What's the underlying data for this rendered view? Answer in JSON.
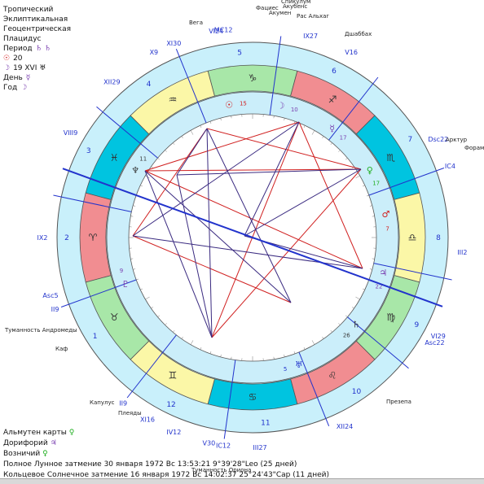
{
  "header": {
    "line1": "Тропический",
    "line2": "Эклиптикальная",
    "line3": "Геоцентрическая",
    "line4": "Плацидус",
    "period_label": "Период",
    "period_glyphs": "♄ ♄",
    "sun_value": "20",
    "moon_value": "19 XVI ♅",
    "day_label": "День",
    "day_glyph": "☿",
    "year_label": "Год",
    "year_glyph": "☽"
  },
  "footer": {
    "almuten_label": "Альмутен карты",
    "almuten_glyph": "♀",
    "doriphory_label": "Дорифорий",
    "doriphory_glyph": "♃",
    "vozn_label": "Возничий",
    "vozn_glyph": "♀",
    "eclipse_lunar": "Полное Лунное затмение 30 января 1972 Вс 13:53:21  9°39'28\"Leo (25 дней)",
    "eclipse_solar": "Кольцевое Солнечное затмение 16 января 1972 Вс 14:02:37 25°24'43\"Cap (11 дней)"
  },
  "zodiac": [
    {
      "glyph": "♑",
      "color": "#a8e7a8",
      "text_color": "#333"
    },
    {
      "glyph": "♐",
      "color": "#f18d91",
      "text_color": "#333"
    },
    {
      "glyph": "♏",
      "color": "#00c4e0",
      "text_color": "#333"
    },
    {
      "glyph": "♎",
      "color": "#fbf7a7",
      "text_color": "#333"
    },
    {
      "glyph": "♍",
      "color": "#a8e7a8",
      "text_color": "#333"
    },
    {
      "glyph": "♌",
      "color": "#f18d91",
      "text_color": "#333"
    },
    {
      "glyph": "♋",
      "color": "#00c4e0",
      "text_color": "#333"
    },
    {
      "glyph": "♊",
      "color": "#fbf7a7",
      "text_color": "#333"
    },
    {
      "glyph": "♉",
      "color": "#a8e7a8",
      "text_color": "#333"
    },
    {
      "glyph": "♈",
      "color": "#f18d91",
      "text_color": "#333"
    },
    {
      "glyph": "♓",
      "color": "#00c4e0",
      "text_color": "#333"
    },
    {
      "glyph": "♒",
      "color": "#fbf7a7",
      "text_color": "#333"
    }
  ],
  "outer_house_numbers": [
    "1",
    "2",
    "3",
    "4",
    "5",
    "6",
    "7",
    "8",
    "9",
    "10",
    "11",
    "12"
  ],
  "cusp_labels": [
    {
      "text": "MC12"
    },
    {
      "text": "IX27"
    },
    {
      "text": "XI30"
    },
    {
      "text": "XII29"
    },
    {
      "text": "Dsc22"
    },
    {
      "text": "VIII9"
    },
    {
      "text": "IX2"
    },
    {
      "text": "X9"
    },
    {
      "text": "II9"
    },
    {
      "text": "III2"
    },
    {
      "text": "IV12"
    },
    {
      "text": "V30"
    },
    {
      "text": "XII24"
    },
    {
      "text": "II9"
    },
    {
      "text": "III27"
    },
    {
      "text": "IC12"
    },
    {
      "text": "VI29"
    },
    {
      "text": "Asc22"
    },
    {
      "text": "Asc5"
    },
    {
      "text": "XI16"
    },
    {
      "text": "VI24"
    },
    {
      "text": "V16"
    },
    {
      "text": "IC4"
    }
  ],
  "star_labels": [
    {
      "text": "Вега"
    },
    {
      "text": "Фациес"
    },
    {
      "text": "Акубенс"
    },
    {
      "text": "Спикулум"
    },
    {
      "text": "Акумен"
    },
    {
      "text": "Рас Альхаг"
    },
    {
      "text": "Дшаббах"
    },
    {
      "text": "Арктур"
    },
    {
      "text": "Форамен"
    },
    {
      "text": "Туманность Андромеды"
    },
    {
      "text": "Каф"
    },
    {
      "text": "Капулус"
    },
    {
      "text": "Плеяды"
    },
    {
      "text": "Туманность Ориона"
    },
    {
      "text": "Презепа"
    }
  ],
  "planets": [
    {
      "glyph": "☉",
      "deg": "15",
      "color": "#d21c1c"
    },
    {
      "glyph": "☽",
      "deg": "10",
      "color": "#7a3fb0"
    },
    {
      "glyph": "☿",
      "deg": "17",
      "color": "#7a3fb0"
    },
    {
      "glyph": "♀",
      "deg": "17",
      "color": "#1fae1f"
    },
    {
      "glyph": "♂",
      "deg": "7",
      "color": "#d21c1c"
    },
    {
      "glyph": "♃",
      "deg": "22",
      "color": "#7a3fb0"
    },
    {
      "glyph": "♄",
      "deg": "26",
      "color": "#3a3a3a"
    },
    {
      "glyph": "♅",
      "deg": "5",
      "color": "#2233cc"
    },
    {
      "glyph": "♆",
      "deg": "11",
      "color": "#3a3a3a"
    },
    {
      "glyph": "♇",
      "deg": "9",
      "color": "#7a3fb0"
    }
  ],
  "colors": {
    "outer_ring": "#c9f0fb",
    "inner_ring": "#cbeefa",
    "center": "#ffffff",
    "ring_stroke": "#555555",
    "aspect_red": "#d02020",
    "aspect_blue": "#3a2a80"
  }
}
